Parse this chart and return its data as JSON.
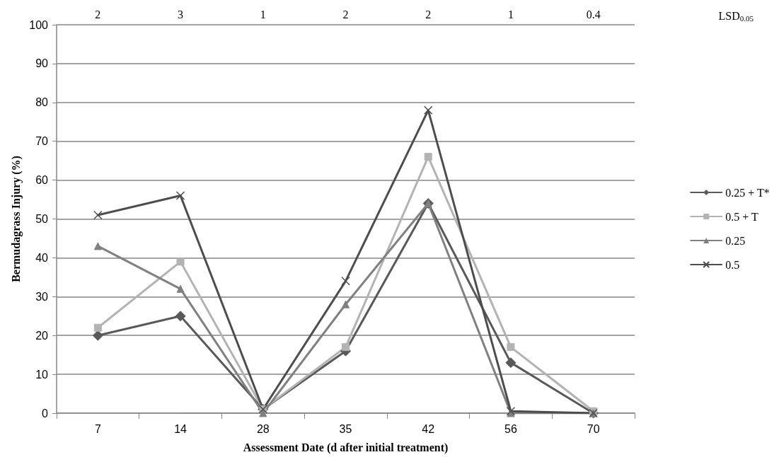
{
  "chart_data": {
    "type": "line",
    "xlabel": "Assessment Date (d after initial treatment)",
    "ylabel": "Bermudagrass Injury (%)",
    "categories": [
      "7",
      "14",
      "28",
      "35",
      "42",
      "56",
      "70"
    ],
    "series": [
      {
        "name": "0.25 + T*",
        "color": "#595959",
        "marker": "diamond",
        "values": [
          20,
          25,
          1,
          16,
          54,
          13,
          0
        ]
      },
      {
        "name": "0.5 + T",
        "color": "#b3b3b3",
        "marker": "square",
        "values": [
          22,
          39,
          1,
          17,
          66,
          17,
          0.5
        ]
      },
      {
        "name": "0.25",
        "color": "#808080",
        "marker": "triangle",
        "values": [
          43,
          32,
          0,
          28,
          54,
          0,
          0
        ]
      },
      {
        "name": "0.5",
        "color": "#4d4d4d",
        "marker": "cross",
        "values": [
          51,
          56,
          1,
          34,
          78,
          0.5,
          0
        ]
      }
    ],
    "ylim": [
      0,
      100
    ],
    "yticks": [
      0,
      10,
      20,
      30,
      40,
      50,
      60,
      70,
      80,
      90,
      100
    ],
    "grid": "y",
    "legend": "right",
    "annotations": [
      "2",
      "3",
      "1",
      "2",
      "2",
      "1",
      "0.4",
      "LSD$_{0.05}$"
    ]
  }
}
